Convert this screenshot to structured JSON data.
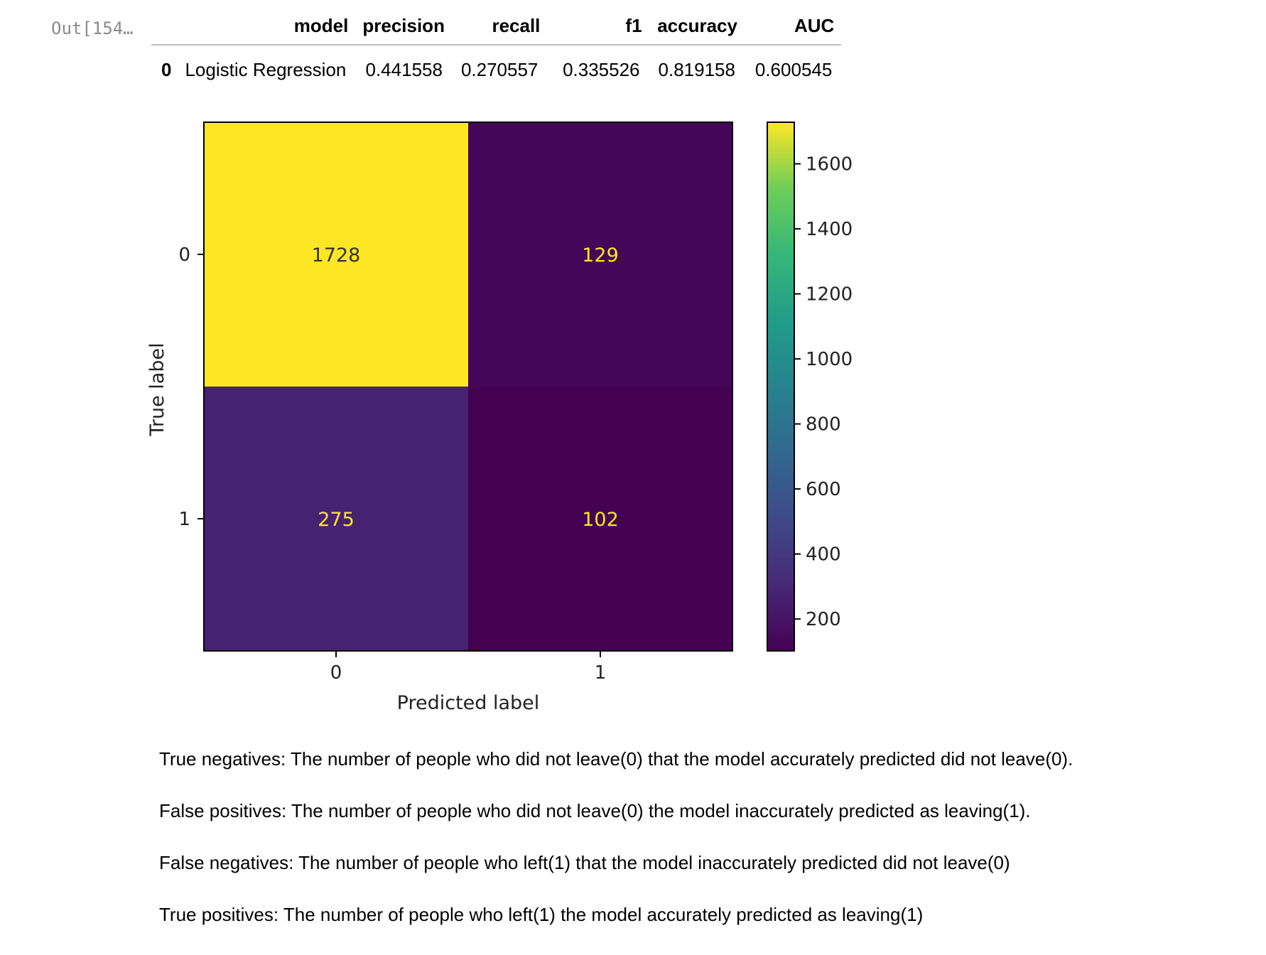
{
  "cell": {
    "prompt": "Out[154…"
  },
  "results_table": {
    "columns": [
      "",
      "model",
      "precision",
      "recall",
      "f1",
      "accuracy",
      "AUC"
    ],
    "rows": [
      [
        "0",
        "Logistic Regression",
        "0.441558",
        "0.270557",
        "0.335526",
        "0.819158",
        "0.600545"
      ]
    ]
  },
  "chart_data": {
    "type": "heatmap",
    "title": "",
    "xlabel": "Predicted label",
    "ylabel": "True label",
    "x_categories": [
      "0",
      "1"
    ],
    "y_categories": [
      "0",
      "1"
    ],
    "values": [
      [
        1728,
        129
      ],
      [
        275,
        102
      ]
    ],
    "colormap": "viridis",
    "colorbar": {
      "min": 102,
      "max": 1728,
      "ticks": [
        200,
        400,
        600,
        800,
        1000,
        1200,
        1400,
        1600
      ]
    },
    "value_text_colors": {
      "on_light": "#333333",
      "on_dark": "#fde725"
    }
  },
  "notes": [
    "True negatives: The number of people who did not leave(0) that the model accurately predicted did not leave(0).",
    "False positives: The number of people who did not leave(0) the model inaccurately predicted as leaving(1).",
    "False negatives: The number of people who left(1) that the model inaccurately predicted did not leave(0)",
    "True positives: The number of people who left(1) the model accurately predicted as leaving(1)"
  ]
}
